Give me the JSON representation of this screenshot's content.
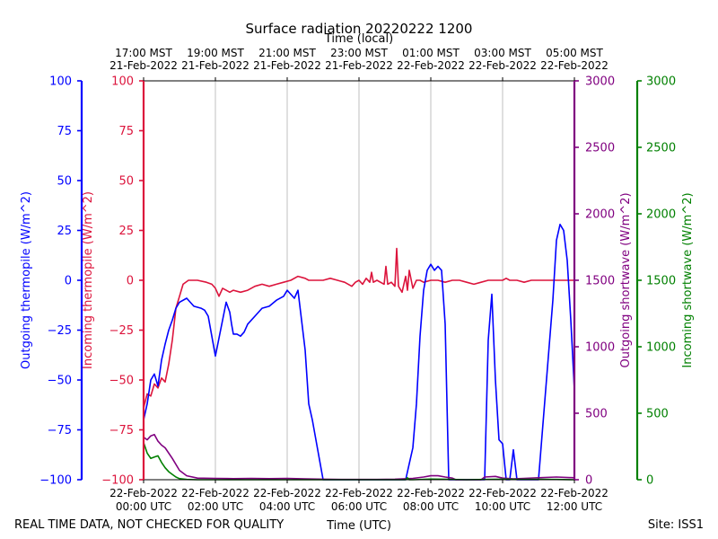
{
  "chart_data": {
    "type": "line",
    "title": "Surface radiation 20220222 1200",
    "top_xlabel": "Time (local)",
    "xlabel": "Time (UTC)",
    "footer_left": "REAL TIME DATA, NOT CHECKED FOR QUALITY",
    "footer_right": "Site: ISS1",
    "x_range_utc_hours": [
      0,
      12
    ],
    "grid": true,
    "bottom_ticks": [
      {
        "x": 0,
        "line1": "22-Feb-2022",
        "line2": "00:00 UTC"
      },
      {
        "x": 2,
        "line1": "22-Feb-2022",
        "line2": "02:00 UTC"
      },
      {
        "x": 4,
        "line1": "22-Feb-2022",
        "line2": "04:00 UTC"
      },
      {
        "x": 6,
        "line1": "22-Feb-2022",
        "line2": "06:00 UTC"
      },
      {
        "x": 8,
        "line1": "22-Feb-2022",
        "line2": "08:00 UTC"
      },
      {
        "x": 10,
        "line1": "22-Feb-2022",
        "line2": "10:00 UTC"
      },
      {
        "x": 12,
        "line1": "22-Feb-2022",
        "line2": "12:00 UTC"
      }
    ],
    "top_ticks": [
      {
        "x": 0,
        "line1": "17:00 MST",
        "line2": "21-Feb-2022"
      },
      {
        "x": 2,
        "line1": "19:00 MST",
        "line2": "21-Feb-2022"
      },
      {
        "x": 4,
        "line1": "21:00 MST",
        "line2": "21-Feb-2022"
      },
      {
        "x": 6,
        "line1": "23:00 MST",
        "line2": "21-Feb-2022"
      },
      {
        "x": 8,
        "line1": "01:00 MST",
        "line2": "22-Feb-2022"
      },
      {
        "x": 10,
        "line1": "03:00 MST",
        "line2": "22-Feb-2022"
      },
      {
        "x": 12,
        "line1": "05:00 MST",
        "line2": "22-Feb-2022"
      }
    ],
    "axes": [
      {
        "id": "out_thermo",
        "label": "Outgoing thermopile (W/m^2)",
        "color": "#0000ff",
        "ylim": [
          -100,
          100
        ],
        "ticks": [
          -100,
          -75,
          -50,
          -25,
          0,
          25,
          50,
          75,
          100
        ]
      },
      {
        "id": "in_thermo",
        "label": "Incoming thermopile (W/m^2)",
        "color": "#dc143c",
        "ylim": [
          -100,
          100
        ],
        "ticks": [
          -100,
          -75,
          -50,
          -25,
          0,
          25,
          50,
          75,
          100
        ]
      },
      {
        "id": "out_sw",
        "label": "Outgoing shortwave (W/m^2)",
        "color": "#800080",
        "ylim": [
          0,
          3000
        ],
        "ticks": [
          0,
          500,
          1000,
          1500,
          2000,
          2500,
          3000
        ]
      },
      {
        "id": "in_sw",
        "label": "Incoming shortwave (W/m^2)",
        "color": "#008000",
        "ylim": [
          0,
          3000
        ],
        "ticks": [
          0,
          500,
          1000,
          1500,
          2000,
          2500,
          3000
        ]
      }
    ],
    "series": [
      {
        "axis": "in_thermo",
        "color": "#dc143c",
        "x": [
          0,
          0.1,
          0.2,
          0.3,
          0.4,
          0.5,
          0.6,
          0.7,
          0.8,
          0.9,
          1.0,
          1.1,
          1.25,
          1.5,
          1.75,
          1.9,
          2.0,
          2.1,
          2.2,
          2.3,
          2.4,
          2.5,
          2.7,
          2.9,
          3.1,
          3.3,
          3.5,
          3.7,
          3.9,
          4.1,
          4.3,
          4.5,
          4.6,
          4.8,
          5.0,
          5.2,
          5.4,
          5.6,
          5.8,
          5.9,
          6.0,
          6.1,
          6.2,
          6.3,
          6.35,
          6.4,
          6.5,
          6.7,
          6.75,
          6.8,
          6.9,
          7.0,
          7.05,
          7.1,
          7.2,
          7.3,
          7.35,
          7.4,
          7.5,
          7.6,
          7.7,
          7.8,
          8.0,
          8.2,
          8.4,
          8.6,
          8.8,
          9.0,
          9.2,
          9.4,
          9.6,
          9.8,
          10.0,
          10.1,
          10.2,
          10.4,
          10.6,
          10.8,
          11.0,
          11.2,
          11.4,
          11.6,
          11.8,
          12.0
        ],
        "y": [
          -64,
          -57,
          -58,
          -52,
          -54,
          -49,
          -51,
          -42,
          -30,
          -14,
          -8,
          -2,
          0,
          0,
          -1,
          -2,
          -4,
          -8,
          -4,
          -5,
          -6,
          -5,
          -6,
          -5,
          -3,
          -2,
          -3,
          -2,
          -1,
          0,
          2,
          1,
          0,
          0,
          0,
          1,
          0,
          -1,
          -3,
          -1,
          0,
          -2,
          1,
          -1,
          4,
          -1,
          0,
          -2,
          7,
          -2,
          -1,
          -3,
          16,
          -3,
          -6,
          2,
          -5,
          5,
          -4,
          0,
          0,
          -1,
          0,
          0,
          -1,
          0,
          0,
          -1,
          -2,
          -1,
          0,
          0,
          0,
          1,
          0,
          0,
          -1,
          0,
          0,
          0,
          0,
          0,
          0,
          0
        ]
      },
      {
        "axis": "out_thermo",
        "color": "#0000ff",
        "x": [
          0,
          0.1,
          0.2,
          0.3,
          0.4,
          0.5,
          0.6,
          0.7,
          0.8,
          0.9,
          1.0,
          1.2,
          1.4,
          1.6,
          1.7,
          1.8,
          2.0,
          2.2,
          2.3,
          2.4,
          2.45,
          2.5,
          2.6,
          2.7,
          2.8,
          2.9,
          3.1,
          3.3,
          3.5,
          3.7,
          3.9,
          4.0,
          4.2,
          4.3,
          4.4,
          4.5,
          4.6,
          4.7,
          4.8,
          4.9,
          5.0,
          5.1,
          5.15,
          5.2,
          5.25,
          5.3,
          5.35,
          5.4,
          5.5,
          5.6,
          5.7,
          6.0,
          7.0,
          7.3,
          7.4,
          7.5,
          7.6,
          7.7,
          7.8,
          7.9,
          8.0,
          8.1,
          8.2,
          8.3,
          8.4,
          8.5,
          8.6,
          8.7,
          9.0,
          9.5,
          9.6,
          9.7,
          9.8,
          9.9,
          10.0,
          10.1,
          10.2,
          10.3,
          10.4,
          10.5,
          10.6,
          10.7,
          10.8,
          11.0,
          11.2,
          11.4,
          11.5,
          11.6,
          11.7,
          11.8,
          11.9,
          12.0
        ],
        "y": [
          -70,
          -62,
          -50,
          -47,
          -53,
          -40,
          -32,
          -25,
          -20,
          -14,
          -11,
          -9,
          -13,
          -14,
          -15,
          -18,
          -38,
          -20,
          -11,
          -16,
          -22,
          -27,
          -27,
          -28,
          -26,
          -22,
          -18,
          -14,
          -13,
          -10,
          -8,
          -5,
          -9,
          -5,
          -20,
          -35,
          -62,
          -70,
          -80,
          -90,
          -100,
          -100,
          -100,
          -100,
          -100,
          -100,
          -100,
          -100,
          -100,
          -100,
          -100,
          -100,
          -100,
          -100,
          -92,
          -84,
          -62,
          -28,
          -5,
          5,
          8,
          5,
          7,
          5,
          -22,
          -100,
          -100,
          -100,
          -100,
          -100,
          -30,
          -7,
          -50,
          -80,
          -82,
          -100,
          -100,
          -85,
          -100,
          -100,
          -100,
          -100,
          -100,
          -100,
          -55,
          -10,
          20,
          28,
          25,
          10,
          -20,
          -55
        ]
      },
      {
        "axis": "out_sw",
        "color": "#800080",
        "x": [
          0,
          0.1,
          0.2,
          0.3,
          0.4,
          0.5,
          0.6,
          0.8,
          1.0,
          1.2,
          1.5,
          2.0,
          2.5,
          3.0,
          3.5,
          4.0,
          4.5,
          5.0,
          5.5,
          6.0,
          6.5,
          7.0,
          7.5,
          7.8,
          8.0,
          8.2,
          8.4,
          8.6,
          8.7,
          9.0,
          9.4,
          9.5,
          9.8,
          10.0,
          10.3,
          10.6,
          11.0,
          11.5,
          12.0
        ],
        "y": [
          320,
          300,
          330,
          340,
          290,
          260,
          240,
          160,
          70,
          30,
          12,
          10,
          8,
          10,
          8,
          10,
          6,
          4,
          2,
          2,
          2,
          4,
          10,
          20,
          30,
          30,
          20,
          12,
          0,
          0,
          0,
          20,
          25,
          12,
          6,
          10,
          15,
          20,
          15
        ]
      },
      {
        "axis": "in_sw",
        "color": "#008000",
        "x": [
          0,
          0.1,
          0.2,
          0.3,
          0.4,
          0.5,
          0.6,
          0.7,
          0.8,
          0.9,
          1.0,
          1.2,
          1.5,
          2.0,
          3.0,
          5.0,
          6.0,
          7.0,
          7.3,
          7.35,
          7.4,
          7.5,
          8.0,
          8.5,
          9.0,
          9.5,
          10.0,
          10.5,
          11.0,
          11.5,
          12.0
        ],
        "y": [
          280,
          200,
          160,
          170,
          180,
          130,
          90,
          60,
          40,
          20,
          8,
          2,
          0,
          0,
          0,
          0,
          0,
          0,
          0,
          15,
          0,
          0,
          5,
          3,
          0,
          2,
          4,
          2,
          3,
          2,
          0
        ]
      }
    ]
  }
}
